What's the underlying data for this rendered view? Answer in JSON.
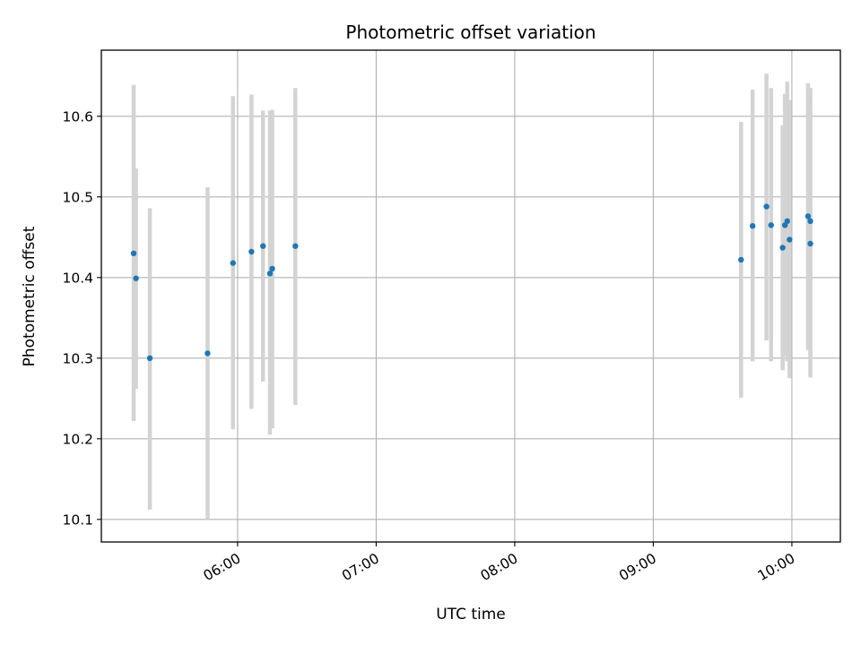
{
  "chart_data": {
    "type": "scatter",
    "title": "Photometric offset variation",
    "xlabel": "UTC time",
    "ylabel": "Photometric offset",
    "x_unit": "UTC time of day (HH:MM)",
    "xlim": [
      "05:01",
      "10:21"
    ],
    "ylim": [
      10.072,
      10.682
    ],
    "x_ticks": [
      "06:00",
      "07:00",
      "08:00",
      "09:00",
      "10:00"
    ],
    "y_ticks": [
      10.1,
      10.2,
      10.3,
      10.4,
      10.5,
      10.6
    ],
    "y_tick_labels": [
      "10.1",
      "10.2",
      "10.3",
      "10.4",
      "10.5",
      "10.6"
    ],
    "grid": true,
    "point_color": "#1f77b4",
    "errorbar_color": "#d3d3d3",
    "points": [
      {
        "x": "05:15",
        "y": 10.43,
        "ylo": 10.222,
        "yhi": 10.639
      },
      {
        "x": "05:16",
        "y": 10.399,
        "ylo": 10.262,
        "yhi": 10.535
      },
      {
        "x": "05:22",
        "y": 10.3,
        "ylo": 10.112,
        "yhi": 10.486
      },
      {
        "x": "05:47",
        "y": 10.306,
        "ylo": 10.1,
        "yhi": 10.512
      },
      {
        "x": "05:58",
        "y": 10.418,
        "ylo": 10.212,
        "yhi": 10.625
      },
      {
        "x": "06:06",
        "y": 10.432,
        "ylo": 10.237,
        "yhi": 10.627
      },
      {
        "x": "06:11",
        "y": 10.439,
        "ylo": 10.271,
        "yhi": 10.607
      },
      {
        "x": "06:14",
        "y": 10.405,
        "ylo": 10.205,
        "yhi": 10.607
      },
      {
        "x": "06:15",
        "y": 10.411,
        "ylo": 10.213,
        "yhi": 10.608
      },
      {
        "x": "06:25",
        "y": 10.439,
        "ylo": 10.242,
        "yhi": 10.635
      },
      {
        "x": "09:38",
        "y": 10.422,
        "ylo": 10.251,
        "yhi": 10.593
      },
      {
        "x": "09:43",
        "y": 10.464,
        "ylo": 10.296,
        "yhi": 10.633
      },
      {
        "x": "09:49",
        "y": 10.488,
        "ylo": 10.322,
        "yhi": 10.653
      },
      {
        "x": "09:51",
        "y": 10.465,
        "ylo": 10.296,
        "yhi": 10.635
      },
      {
        "x": "09:56",
        "y": 10.437,
        "ylo": 10.285,
        "yhi": 10.589
      },
      {
        "x": "09:57",
        "y": 10.465,
        "ylo": 10.303,
        "yhi": 10.628
      },
      {
        "x": "09:58",
        "y": 10.47,
        "ylo": 10.296,
        "yhi": 10.643
      },
      {
        "x": "09:59",
        "y": 10.447,
        "ylo": 10.275,
        "yhi": 10.62
      },
      {
        "x": "10:07",
        "y": 10.476,
        "ylo": 10.31,
        "yhi": 10.641
      },
      {
        "x": "10:08",
        "y": 10.47,
        "ylo": 10.302,
        "yhi": 10.635
      },
      {
        "x": "10:08",
        "y": 10.442,
        "ylo": 10.276,
        "yhi": 10.607
      }
    ]
  }
}
